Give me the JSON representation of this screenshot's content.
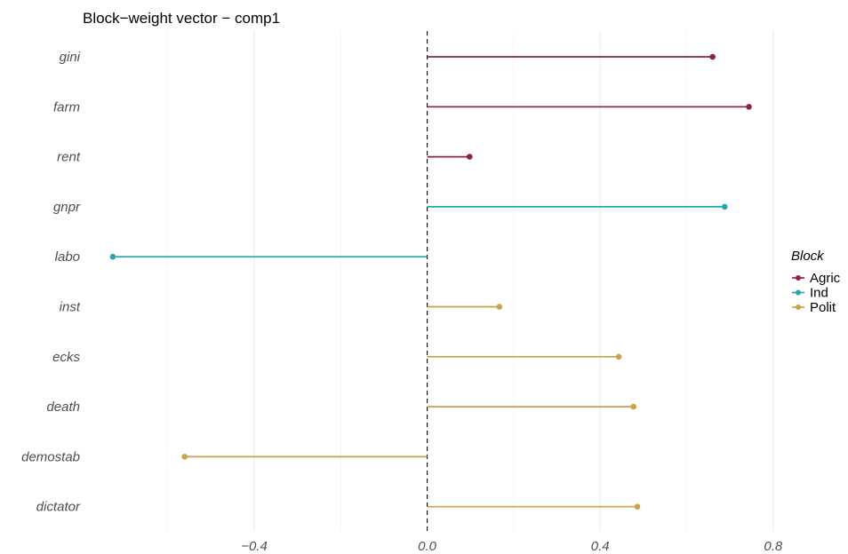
{
  "chart_data": {
    "type": "lollipop",
    "title": "Block−weight vector − comp1",
    "xlabel": "",
    "ylabel": "",
    "xlim": [
      -0.73,
      0.93
    ],
    "x_ticks": [
      -0.4,
      0.0,
      0.4,
      0.8
    ],
    "x_tick_labels": [
      "−0.4",
      "0.0",
      "0.4",
      "0.8"
    ],
    "reference_line": 0.0,
    "grid": true,
    "legend_position": "right",
    "legend_title": "Block",
    "blocks": [
      {
        "name": "Agric",
        "color": "#8B2252"
      },
      {
        "name": "Ind",
        "color": "#23A8B0"
      },
      {
        "name": "Polit",
        "color": "#C9A24C"
      }
    ],
    "categories": [
      "gini",
      "farm",
      "rent",
      "gnpr",
      "labo",
      "inst",
      "ecks",
      "death",
      "demostab",
      "dictator"
    ],
    "values": [
      0.66,
      0.744,
      0.098,
      0.688,
      -0.727,
      0.167,
      0.443,
      0.477,
      -0.561,
      0.486
    ],
    "block_of": [
      "Agric",
      "Agric",
      "Agric",
      "Ind",
      "Ind",
      "Polit",
      "Polit",
      "Polit",
      "Polit",
      "Polit"
    ]
  }
}
